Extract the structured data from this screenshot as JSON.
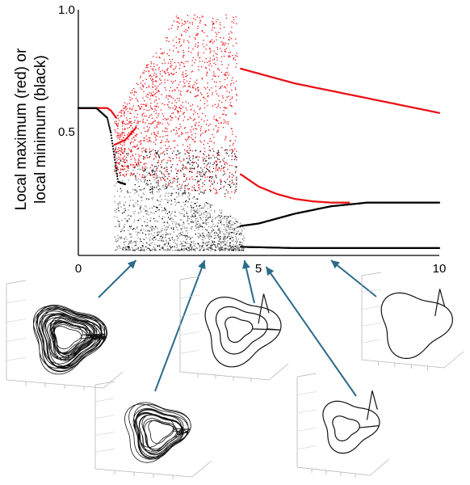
{
  "chart_data": {
    "type": "scatter",
    "title": "",
    "xlabel": "",
    "ylabel_lines": [
      "Local maximum (red) or",
      "local minimum (black)"
    ],
    "xlim": [
      0,
      10
    ],
    "ylim": [
      0,
      1.0
    ],
    "x_ticks": [
      0,
      5,
      10
    ],
    "x_tick_labels": [
      "0",
      "5",
      "10"
    ],
    "y_ticks": [
      0.5,
      1.0
    ],
    "y_tick_labels": [
      "0.5",
      "1.0"
    ],
    "grid": false,
    "series": [
      {
        "name": "Local maximum (red)",
        "color": "#e8141a",
        "branches": [
          {
            "x": [
              0.0,
              0.5,
              0.8,
              0.9,
              1.0,
              1.05
            ],
            "y": [
              0.6,
              0.6,
              0.6,
              0.59,
              0.57,
              0.56
            ]
          },
          {
            "x": [
              1.0,
              1.3,
              1.6
            ],
            "y": [
              0.45,
              0.47,
              0.52
            ]
          },
          {
            "x": [
              4.5,
              5.0,
              6.0,
              7.0,
              8.0,
              9.0,
              10.0
            ],
            "y": [
              0.76,
              0.74,
              0.7,
              0.67,
              0.64,
              0.61,
              0.58
            ]
          },
          {
            "x": [
              4.5,
              5.0,
              5.5,
              6.0,
              6.5,
              7.0,
              7.5
            ],
            "y": [
              0.33,
              0.28,
              0.25,
              0.23,
              0.22,
              0.215,
              0.215
            ]
          }
        ],
        "chaotic_range_x": [
          1.0,
          4.3
        ],
        "chaotic_range_y": [
          0.22,
          0.98
        ]
      },
      {
        "name": "Local minimum (black)",
        "color": "#000000",
        "branches": [
          {
            "x": [
              0.0,
              0.5,
              0.8,
              0.9,
              1.0,
              1.1,
              1.3
            ],
            "y": [
              0.6,
              0.6,
              0.56,
              0.5,
              0.4,
              0.3,
              0.29
            ]
          },
          {
            "x": [
              4.5,
              5.0,
              6.0,
              7.0,
              8.0,
              9.0,
              10.0
            ],
            "y": [
              0.12,
              0.13,
              0.17,
              0.2,
              0.215,
              0.215,
              0.215
            ]
          },
          {
            "x": [
              4.5,
              6.0,
              8.0,
              10.0
            ],
            "y": [
              0.035,
              0.03,
              0.03,
              0.03
            ]
          }
        ],
        "chaotic_range_x": [
          1.0,
          4.5
        ],
        "chaotic_range_y": [
          0.02,
          0.45
        ]
      }
    ]
  },
  "insets": [
    {
      "name": "phase-portrait-chaotic-dense",
      "points_to_x": 1.6,
      "turns": 26
    },
    {
      "name": "phase-portrait-chaotic-sparse",
      "points_to_x": 3.5,
      "turns": 15
    },
    {
      "name": "phase-portrait-period-3",
      "points_to_x": 4.6,
      "turns": 3
    },
    {
      "name": "phase-portrait-period-2",
      "points_to_x": 5.2,
      "turns": 2
    },
    {
      "name": "phase-portrait-period-1",
      "points_to_x": 7.0,
      "turns": 1
    }
  ],
  "colors": {
    "max": "#e8141a",
    "min": "#000000",
    "min_dense": "#8a8a8a",
    "arrow": "#2a6a8a"
  }
}
